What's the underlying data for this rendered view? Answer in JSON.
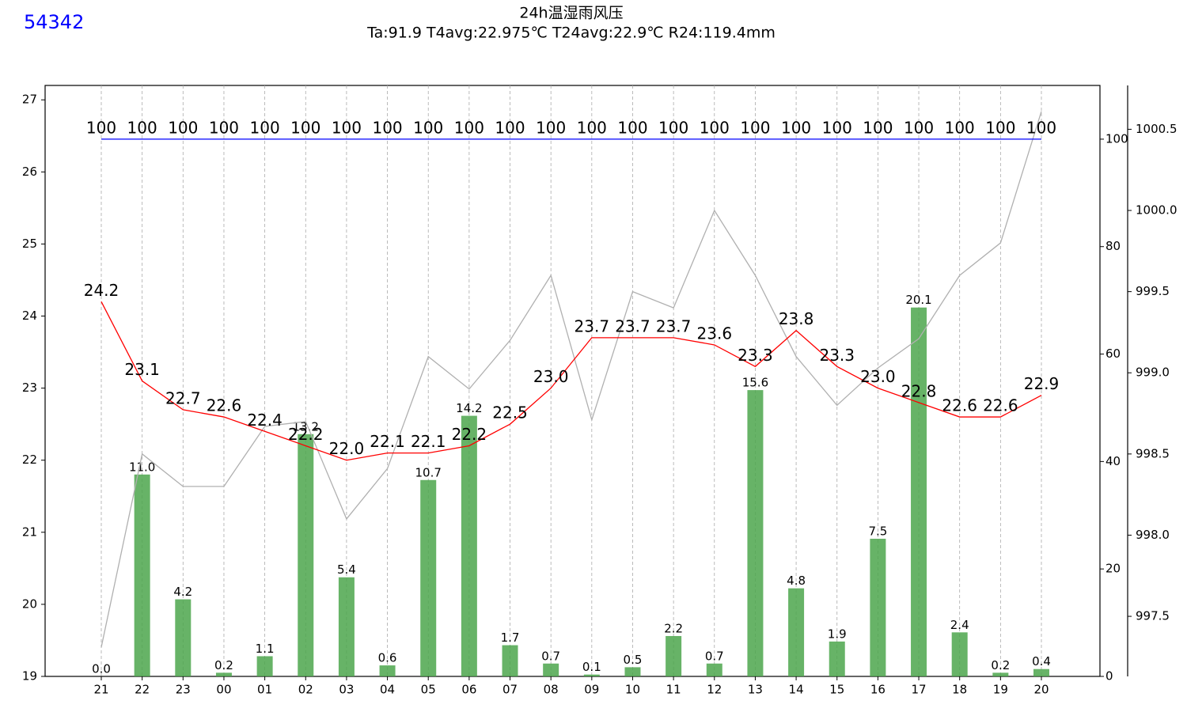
{
  "chart_data": {
    "type": "line",
    "station": "54342",
    "title": "24h温湿雨风压",
    "subtitle": "Ta:91.9  T4avg:22.975℃  T24avg:22.9℃  R24:119.4mm",
    "categories": [
      "21",
      "22",
      "23",
      "00",
      "01",
      "02",
      "03",
      "04",
      "05",
      "06",
      "07",
      "08",
      "09",
      "10",
      "11",
      "12",
      "13",
      "14",
      "15",
      "16",
      "17",
      "18",
      "19",
      "20"
    ],
    "ylim": [
      19,
      27.2
    ],
    "yticks": [
      19,
      20,
      21,
      22,
      23,
      24,
      25,
      26,
      27
    ],
    "y2lim": [
      0,
      110
    ],
    "y2ticks": [
      0,
      20,
      40,
      60,
      80,
      100
    ],
    "y3lim": [
      997.13,
      1000.77
    ],
    "y3ticks": [
      {
        "value": 997.5,
        "label": "997.5"
      },
      {
        "value": 998,
        "label": "998.0"
      },
      {
        "value": 998.5,
        "label": "998.5"
      },
      {
        "value": 999,
        "label": "999.0"
      },
      {
        "value": 999.5,
        "label": "999.5"
      },
      {
        "value": 1000,
        "label": "1000.0"
      },
      {
        "value": 1000.5,
        "label": "1000.5"
      }
    ],
    "y4lim": [
      0,
      32.2
    ],
    "grid": true,
    "series": [
      {
        "type": "bar",
        "axis": "y4",
        "color": "#4ca64c",
        "values": [
          0,
          11,
          4.2,
          0.2,
          1.1,
          13.2,
          5.4,
          0.6,
          10.7,
          14.2,
          1.7,
          0.7,
          0.1,
          0.5,
          2.2,
          0.7,
          15.6,
          4.8,
          1.9,
          7.5,
          20.1,
          2.4,
          0.2,
          0.4
        ],
        "value_labels": [
          "0.0",
          "11.0",
          "4.2",
          "0.2",
          "1.1",
          "13.2",
          "5.4",
          "0.6",
          "10.7",
          "14.2",
          "1.7",
          "0.7",
          "0.1",
          "0.5",
          "2.2",
          "0.7",
          "15.6",
          "4.8",
          "1.9",
          "7.5",
          "20.1",
          "2.4",
          "0.2",
          "0.4"
        ]
      },
      {
        "type": "line",
        "axis": "y3",
        "color": "#b0b0b0",
        "values": [
          997.31,
          998.5,
          998.3,
          998.3,
          998.67,
          998.7,
          998.1,
          998.41,
          999.1,
          998.9,
          999.2,
          999.6,
          998.71,
          999.5,
          999.4,
          1000.0,
          999.6,
          999.1,
          998.8,
          999.03,
          999.21,
          999.6,
          999.8,
          1000.61
        ]
      },
      {
        "type": "line",
        "axis": "y2",
        "color": "#0000ff",
        "values": [
          100,
          100,
          100,
          100,
          100,
          100,
          100,
          100,
          100,
          100,
          100,
          100,
          100,
          100,
          100,
          100,
          100,
          100,
          100,
          100,
          100,
          100,
          100,
          100
        ]
      },
      {
        "type": "line",
        "axis": "y",
        "color": "#ff0000",
        "values": [
          24.2,
          23.1,
          22.7,
          22.6,
          22.4,
          22.2,
          22,
          22.1,
          22.1,
          22.2,
          22.5,
          23,
          23.7,
          23.7,
          23.7,
          23.6,
          23.3,
          23.8,
          23.3,
          23,
          22.8,
          22.6,
          22.6,
          22.9
        ],
        "value_labels": [
          "24.2",
          "23.1",
          "22.7",
          "22.6",
          "22.4",
          "22.2",
          "22.0",
          "22.1",
          "22.1",
          "22.2",
          "22.5",
          "23.0",
          "23.7",
          "23.7",
          "23.7",
          "23.6",
          "23.3",
          "23.8",
          "23.3",
          "23.0",
          "22.8",
          "22.6",
          "22.6",
          "22.9"
        ]
      }
    ]
  }
}
